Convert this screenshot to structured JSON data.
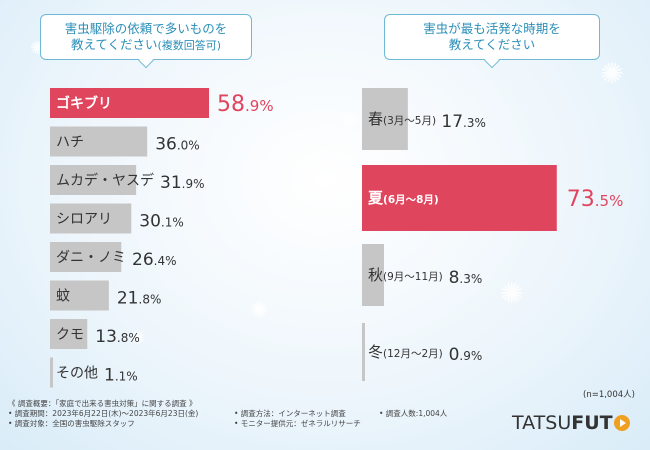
{
  "left_title": {
    "line1": "害虫駆除の依頼で多いものを",
    "line2_main": "教えてください",
    "line2_small": "(複数回答可)"
  },
  "right_title": {
    "line1": "害虫が最も活発な時期を",
    "line2": "教えてください"
  },
  "colors": {
    "highlight": "#e0455e",
    "bar": "#c6c6c6",
    "text": "#333333",
    "accent_blue": "#2c8fb8"
  },
  "chart_data": [
    {
      "type": "bar",
      "orientation": "horizontal",
      "title": "害虫駆除の依頼で多いものを教えてください(複数回答可)",
      "categories": [
        "ゴキブリ",
        "ハチ",
        "ムカデ・ヤスデ",
        "シロアリ",
        "ダニ・ノミ",
        "蚊",
        "クモ",
        "その他"
      ],
      "values": [
        58.9,
        36.0,
        31.9,
        30.1,
        26.4,
        21.8,
        13.8,
        1.1
      ],
      "value_labels": [
        "58.9%",
        "36.0%",
        "31.9%",
        "30.1%",
        "26.4%",
        "21.8%",
        "13.8%",
        "1.1%"
      ],
      "highlight_index": 0,
      "unit": "%"
    },
    {
      "type": "bar",
      "orientation": "horizontal",
      "title": "害虫が最も活発な時期を教えてください",
      "categories": [
        "春(3月～5月)",
        "夏(6月～8月)",
        "秋(9月～11月)",
        "冬(12月～2月)"
      ],
      "values": [
        17.3,
        73.5,
        8.3,
        0.9
      ],
      "value_labels": [
        "17.3%",
        "73.5%",
        "8.3%",
        "0.9%"
      ],
      "highlight_index": 1,
      "unit": "%"
    }
  ],
  "sample_note": "(n=1,004人)",
  "footer": {
    "overview": "《 調査概要：「家庭で出来る害虫対策」に関する調査 》",
    "period": "• 調査期間：2023年6月22日(木)～2023年6月23日(金)",
    "method": "• 調査方法：インターネット調査",
    "count": "• 調査人数:1,004人",
    "target": "• 調査対象：全国の害虫駆除スタッフ",
    "provider": "• モニター提供元：ゼネラルリサーチ"
  },
  "logo": {
    "part1": "TATSU",
    "part2": "FUT"
  }
}
